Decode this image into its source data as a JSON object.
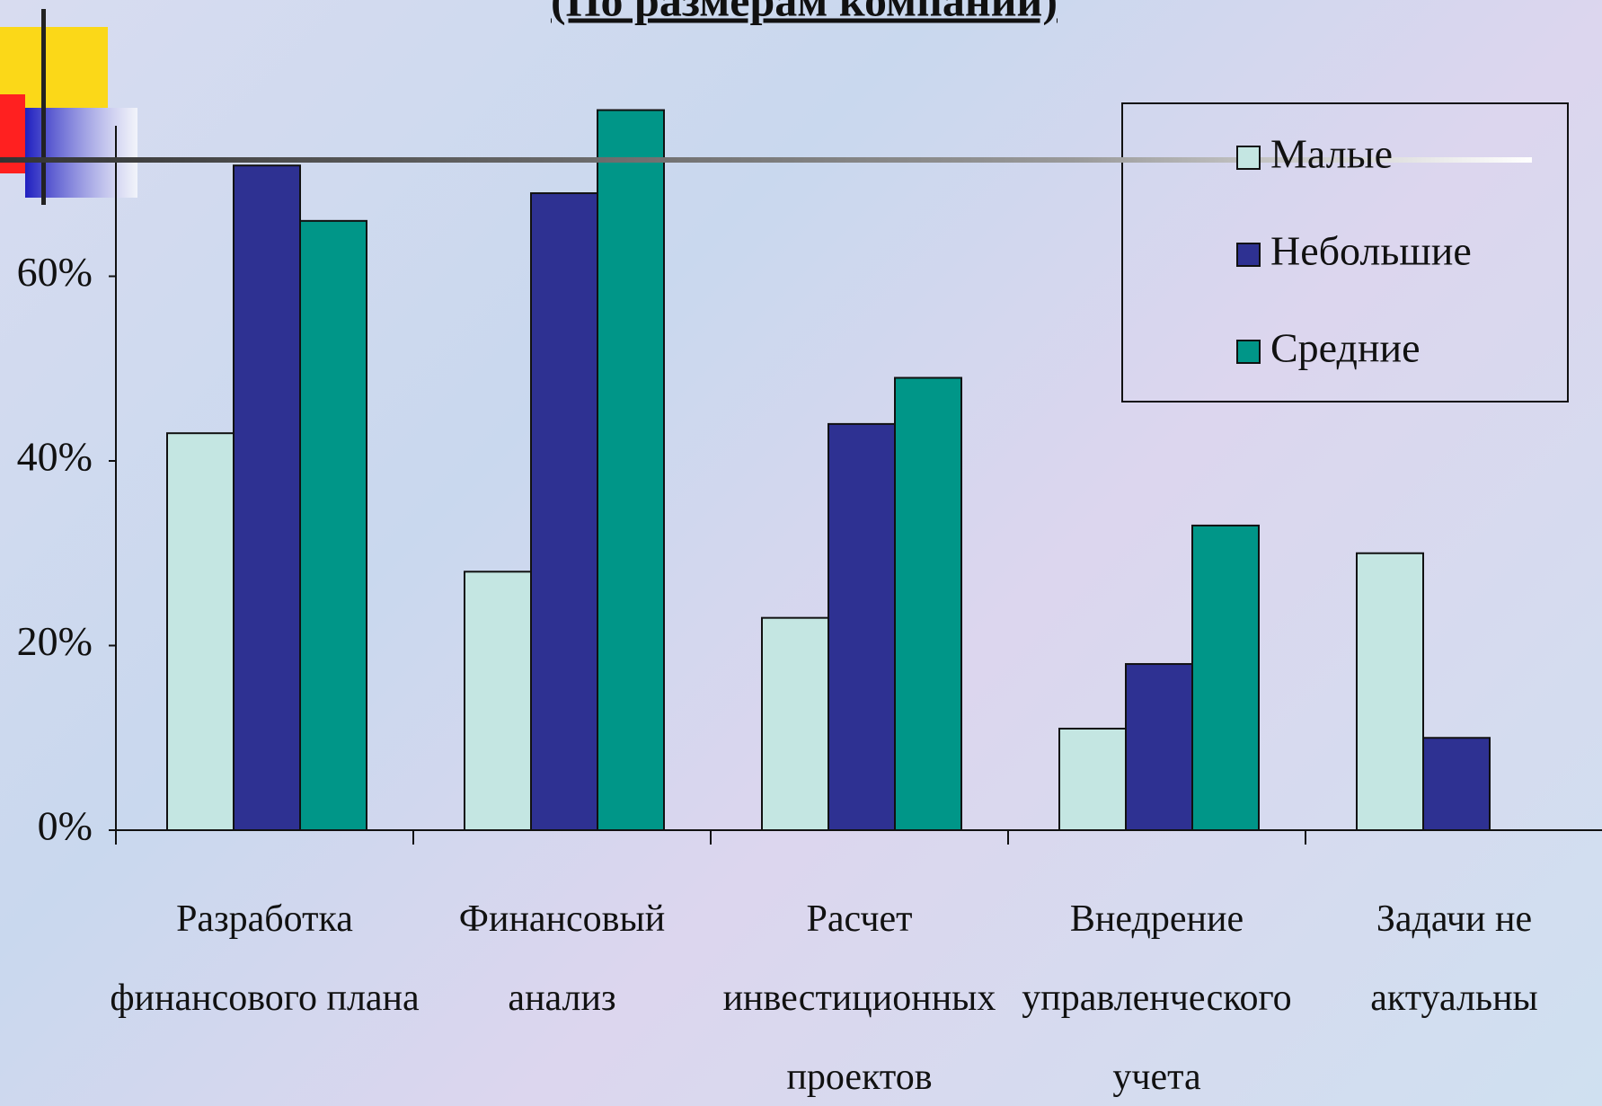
{
  "chart_data": {
    "type": "bar",
    "title": "(По размерам компаний)",
    "categories": [
      "Разработка финансового плана",
      "Финансовый анализ",
      "Расчет инвестиционных проектов",
      "Внедрение управленческого учета",
      "Задачи не актуальны"
    ],
    "series": [
      {
        "name": "Малые",
        "color": "#c4e6e2",
        "values": [
          43,
          28,
          23,
          11,
          30
        ]
      },
      {
        "name": "Небольшие",
        "color": "#2e3192",
        "values": [
          72,
          69,
          44,
          18,
          10
        ]
      },
      {
        "name": "Средние",
        "color": "#009688",
        "values": [
          66,
          78,
          49,
          33,
          null
        ]
      }
    ],
    "ylim": [
      0,
      80
    ],
    "yticks": [
      {
        "value": 0,
        "label": "0%"
      },
      {
        "value": 20,
        "label": "20%"
      },
      {
        "value": 40,
        "label": "40%"
      },
      {
        "value": 60,
        "label": "60%"
      }
    ],
    "legend": "upper right"
  }
}
